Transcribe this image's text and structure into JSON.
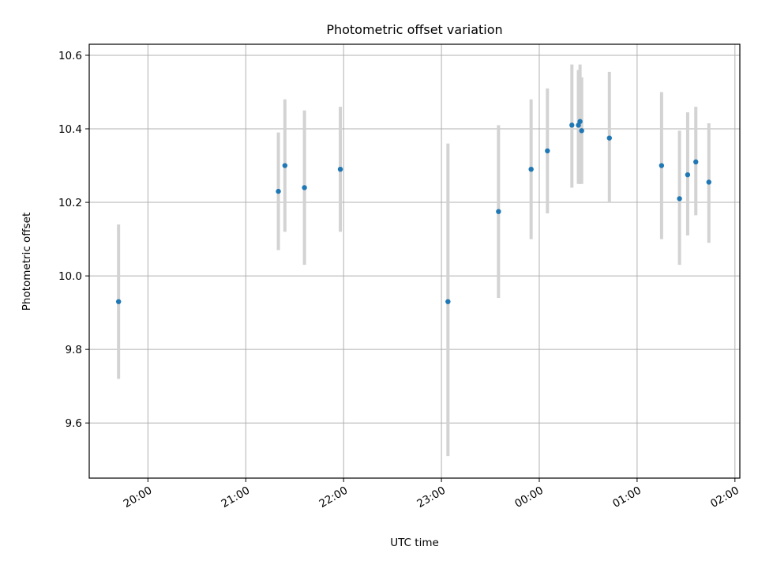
{
  "chart_data": {
    "type": "scatter",
    "title": "Photometric offset variation",
    "xlabel": "UTC time",
    "ylabel": "Photometric offset",
    "grid": true,
    "x_tick_labels": [
      "20:00",
      "21:00",
      "22:00",
      "23:00",
      "00:00",
      "01:00",
      "02:00"
    ],
    "y_tick_labels": [
      "9.6",
      "9.8",
      "10.0",
      "10.2",
      "10.4",
      "10.6"
    ],
    "y_ticks": [
      9.6,
      9.8,
      10.0,
      10.2,
      10.4,
      10.6
    ],
    "ylim": [
      9.45,
      10.63
    ],
    "xlim": [
      "19:24",
      "02:03"
    ],
    "marker_color": "#1f77b4",
    "errorbar_color": "#d3d3d3",
    "points": [
      {
        "t": "19:42",
        "y": 9.93,
        "lo": 9.72,
        "hi": 10.14
      },
      {
        "t": "21:20",
        "y": 10.23,
        "lo": 10.07,
        "hi": 10.39
      },
      {
        "t": "21:24",
        "y": 10.3,
        "lo": 10.12,
        "hi": 10.48
      },
      {
        "t": "21:36",
        "y": 10.24,
        "lo": 10.03,
        "hi": 10.45
      },
      {
        "t": "21:58",
        "y": 10.29,
        "lo": 10.12,
        "hi": 10.46
      },
      {
        "t": "23:04",
        "y": 9.93,
        "lo": 9.51,
        "hi": 10.36
      },
      {
        "t": "23:35",
        "y": 10.175,
        "lo": 9.94,
        "hi": 10.41
      },
      {
        "t": "23:55",
        "y": 10.29,
        "lo": 10.1,
        "hi": 10.48
      },
      {
        "t": "00:05",
        "y": 10.34,
        "lo": 10.17,
        "hi": 10.51
      },
      {
        "t": "00:20",
        "y": 10.41,
        "lo": 10.24,
        "hi": 10.575
      },
      {
        "t": "00:24",
        "y": 10.41,
        "lo": 10.25,
        "hi": 10.56
      },
      {
        "t": "00:25",
        "y": 10.42,
        "lo": 10.25,
        "hi": 10.575
      },
      {
        "t": "00:26",
        "y": 10.395,
        "lo": 10.25,
        "hi": 10.54
      },
      {
        "t": "00:43",
        "y": 10.375,
        "lo": 10.2,
        "hi": 10.555
      },
      {
        "t": "01:15",
        "y": 10.3,
        "lo": 10.1,
        "hi": 10.5
      },
      {
        "t": "01:26",
        "y": 10.21,
        "lo": 10.03,
        "hi": 10.395
      },
      {
        "t": "01:31",
        "y": 10.275,
        "lo": 10.11,
        "hi": 10.445
      },
      {
        "t": "01:36",
        "y": 10.31,
        "lo": 10.165,
        "hi": 10.46
      },
      {
        "t": "01:44",
        "y": 10.255,
        "lo": 10.09,
        "hi": 10.415
      }
    ]
  }
}
